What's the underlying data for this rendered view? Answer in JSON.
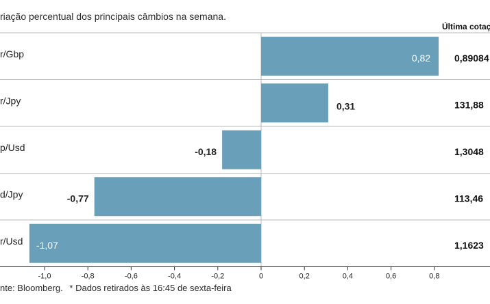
{
  "subtitle": "riação percentual dos principais câmbios na semana.",
  "column_header": "Última cotaç",
  "source": "nte: Bloomberg.",
  "footnote": "* Dados retirados às 16:45 de sexta-feira",
  "colors": {
    "bar": "#6a9fba",
    "divider": "#b8b8b8",
    "axis": "#333333",
    "text": "#222222",
    "label_inside": "#ffffff"
  },
  "chart_data": {
    "type": "bar",
    "orientation": "horizontal",
    "title": "",
    "xlabel": "",
    "ylabel": "",
    "xlim": [
      -1.1,
      0.9
    ],
    "ticks": [
      -1.0,
      -0.8,
      -0.6,
      -0.4,
      -0.2,
      0,
      0.2,
      0.4,
      0.6,
      0.8
    ],
    "tick_labels": [
      "-1,0",
      "-0,8",
      "-0,6",
      "-0,4",
      "-0,2",
      "0",
      "0,2",
      "0,4",
      "0,6",
      "0,8"
    ],
    "categories": [
      "r/Gbp",
      "r/Jpy",
      "p/Usd",
      "d/Jpy",
      "r/Usd"
    ],
    "values": [
      0.82,
      0.31,
      -0.18,
      -0.77,
      -1.07
    ],
    "value_labels": [
      "0,82",
      "0,31",
      "-0,18",
      "-0,77",
      "-1,07"
    ],
    "last_quote": [
      "0,89084",
      "131,88",
      "1,3048",
      "113,46",
      "1,1623"
    ],
    "label_inside": [
      true,
      false,
      false,
      false,
      true
    ]
  }
}
